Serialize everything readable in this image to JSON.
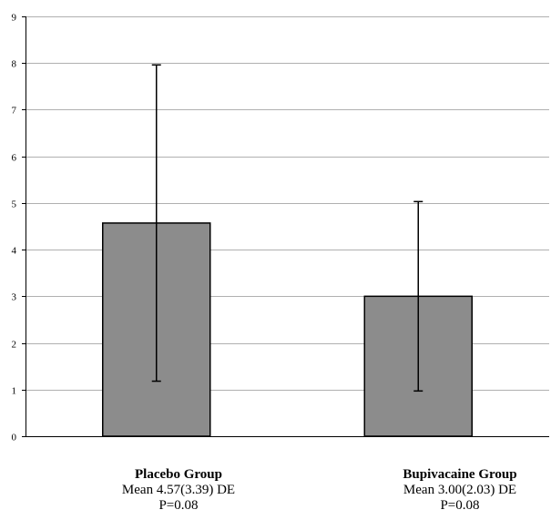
{
  "chart_data": {
    "type": "bar",
    "title": "",
    "xlabel": "",
    "ylabel": "",
    "ylim": [
      0,
      9
    ],
    "yticks": [
      0,
      1,
      2,
      3,
      4,
      5,
      6,
      7,
      8,
      9
    ],
    "grid": true,
    "categories": [
      "Placebo Group",
      "Bupivacaine Group"
    ],
    "values": [
      4.57,
      3.0
    ],
    "error_bars": [
      {
        "low": 1.18,
        "high": 7.96
      },
      {
        "low": 0.97,
        "high": 5.03
      }
    ],
    "bar_color": "#8c8c8c",
    "annotations": [
      {
        "mean": "Mean 4.57(3.39) DE",
        "p": "P=0.08"
      },
      {
        "mean": "Mean 3.00(2.03) DE",
        "p": "P=0.08"
      }
    ]
  }
}
